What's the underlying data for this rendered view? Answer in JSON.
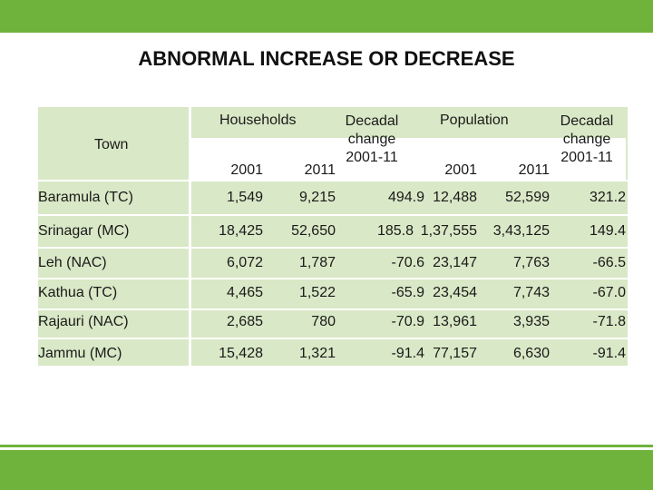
{
  "title": "ABNORMAL INCREASE OR DECREASE",
  "header": {
    "town": "Town",
    "households": "Households",
    "decadal_change_1": "Decadal change 2001-11",
    "population": "Population",
    "decadal_change_2": "Decadal change 2001-11",
    "year_2001_a": "2001",
    "year_2011_a": "2011",
    "year_2001_b": "2001",
    "year_2011_b": "2011"
  },
  "rows": [
    {
      "town": "Baramula (TC)",
      "hh2001": "1,549",
      "hh2011": "9,215",
      "hhchange": "494.9",
      "pop2001": "12,488",
      "pop2011": "52,599",
      "popchange": "321.2"
    },
    {
      "town": "Srinagar (MC)",
      "hh2001": "18,425",
      "hh2011": "52,650",
      "hhchange": "185.8",
      "pop2001": "1,37,555",
      "pop2011": "3,43,125",
      "popchange": "149.4"
    },
    {
      "town": "Leh (NAC)",
      "hh2001": "6,072",
      "hh2011": "1,787",
      "hhchange": "-70.6",
      "pop2001": "23,147",
      "pop2011": "7,763",
      "popchange": "-66.5"
    },
    {
      "town": "Kathua  (TC)",
      "hh2001": "4,465",
      "hh2011": "1,522",
      "hhchange": "-65.9",
      "pop2001": "23,454",
      "pop2011": "7,743",
      "popchange": "-67.0"
    },
    {
      "town": "Rajauri (NAC)",
      "hh2001": "2,685",
      "hh2011": "780",
      "hhchange": "-70.9",
      "pop2001": "13,961",
      "pop2011": "3,935",
      "popchange": "-71.8"
    },
    {
      "town": "Jammu  (MC)",
      "hh2001": "15,428",
      "hh2011": "1,321",
      "hhchange": "-91.4",
      "pop2001": "77,157",
      "pop2011": "6,630",
      "popchange": "-91.4"
    }
  ]
}
